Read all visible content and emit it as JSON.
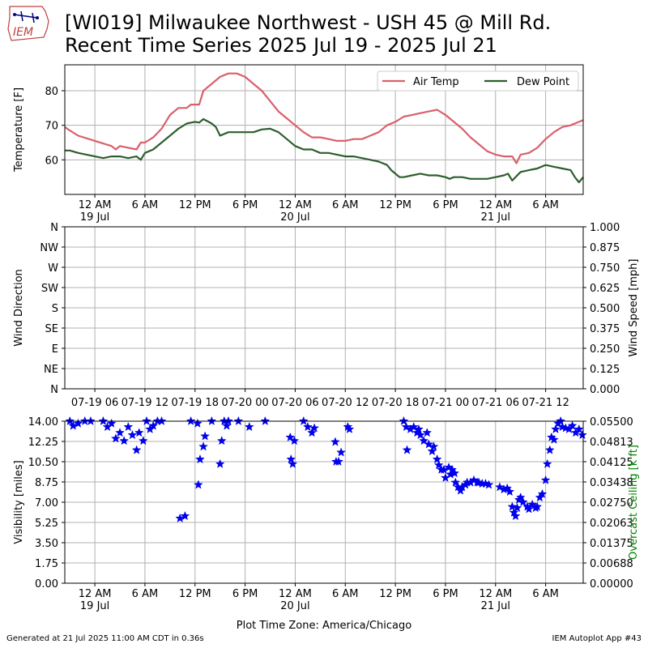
{
  "title_line1": "[WI019] Milwaukee Northwest - USH 45 @ Mill Rd.",
  "title_line2": "Recent Time Series 2025 Jul 19 - 2025 Jul 21",
  "footer_left": "Generated at 21 Jul 2025 11:00 AM CDT in 0.36s",
  "footer_right": "IEM Autoplot App #43",
  "logo_text": "IEM",
  "colors": {
    "air_temp": "#d9606a",
    "dew_point": "#2d5e2d",
    "visibility": "#0000ee",
    "ceiling_label": "#008000",
    "grid": "#b0b0b0"
  },
  "time_axis_labels": [
    {
      "hour": 24,
      "label": "12 AM",
      "sub": "19 Jul"
    },
    {
      "hour": 30,
      "label": "6 AM",
      "sub": ""
    },
    {
      "hour": 36,
      "label": "12 PM",
      "sub": ""
    },
    {
      "hour": 42,
      "label": "6 PM",
      "sub": ""
    },
    {
      "hour": 48,
      "label": "12 AM",
      "sub": "20 Jul"
    },
    {
      "hour": 54,
      "label": "6 AM",
      "sub": ""
    },
    {
      "hour": 60,
      "label": "12 PM",
      "sub": ""
    },
    {
      "hour": 66,
      "label": "6 PM",
      "sub": ""
    },
    {
      "hour": 72,
      "label": "12 AM",
      "sub": "21 Jul"
    },
    {
      "hour": 78,
      "label": "6 AM",
      "sub": ""
    }
  ],
  "wind_axis_labels": [
    {
      "hour": 24,
      "label": "07-19 06"
    },
    {
      "hour": 30,
      "label": "07-19 12"
    },
    {
      "hour": 36,
      "label": "07-19 18"
    },
    {
      "hour": 42,
      "label": "07-20 00"
    },
    {
      "hour": 48,
      "label": "07-20 06"
    },
    {
      "hour": 54,
      "label": "07-20 12"
    },
    {
      "hour": 60,
      "label": "07-20 18"
    },
    {
      "hour": 66,
      "label": "07-21 00"
    },
    {
      "hour": 72,
      "label": "07-21 06"
    },
    {
      "hour": 78,
      "label": "07-21 12"
    }
  ],
  "chart_data": [
    {
      "type": "line",
      "time_axis": "hours since 2025-07-18 00:00 CDT",
      "xlim": [
        20.4,
        82.5
      ],
      "ylabel": "Temperature [F]",
      "yticks": [
        60,
        70,
        80
      ],
      "ylim": [
        50,
        87.5
      ],
      "grid": true,
      "legend": "top-right",
      "series": [
        {
          "name": "Air Temp",
          "points": [
            [
              20.4,
              69.5
            ],
            [
              21,
              68.5
            ],
            [
              22,
              67
            ],
            [
              24,
              65.5
            ],
            [
              26,
              64
            ],
            [
              26.5,
              63
            ],
            [
              27,
              64
            ],
            [
              28,
              63.5
            ],
            [
              29,
              63
            ],
            [
              29.5,
              65
            ],
            [
              30,
              65
            ],
            [
              31,
              66.5
            ],
            [
              32,
              69
            ],
            [
              33,
              73
            ],
            [
              34,
              75
            ],
            [
              35,
              75
            ],
            [
              35.5,
              76
            ],
            [
              36.5,
              76
            ],
            [
              37,
              80
            ],
            [
              38,
              82
            ],
            [
              39,
              84
            ],
            [
              40,
              85
            ],
            [
              41,
              85
            ],
            [
              42,
              84
            ],
            [
              43,
              82
            ],
            [
              44,
              80
            ],
            [
              45,
              77
            ],
            [
              46,
              74
            ],
            [
              47,
              72
            ],
            [
              48,
              70
            ],
            [
              49,
              68
            ],
            [
              50,
              66.5
            ],
            [
              51,
              66.5
            ],
            [
              52,
              66
            ],
            [
              53,
              65.5
            ],
            [
              54,
              65.5
            ],
            [
              55,
              66
            ],
            [
              56,
              66
            ],
            [
              57,
              67
            ],
            [
              58,
              68
            ],
            [
              59,
              70
            ],
            [
              60,
              71
            ],
            [
              61,
              72.5
            ],
            [
              62,
              73
            ],
            [
              63,
              73.5
            ],
            [
              64,
              74
            ],
            [
              65,
              74.5
            ],
            [
              66,
              73
            ],
            [
              67,
              71
            ],
            [
              68,
              69
            ],
            [
              69,
              66.5
            ],
            [
              70,
              64.5
            ],
            [
              71,
              62.5
            ],
            [
              72,
              61.5
            ],
            [
              73,
              61
            ],
            [
              74,
              61
            ],
            [
              74.5,
              59
            ],
            [
              75,
              61.5
            ],
            [
              76,
              62
            ],
            [
              77,
              63.5
            ],
            [
              78,
              66
            ],
            [
              79,
              68
            ],
            [
              80,
              69.5
            ],
            [
              81,
              70
            ],
            [
              82,
              71
            ],
            [
              82.5,
              71.5
            ]
          ]
        },
        {
          "name": "Dew Point",
          "points": [
            [
              20.4,
              62.7
            ],
            [
              21,
              62.7
            ],
            [
              22,
              62
            ],
            [
              24,
              61
            ],
            [
              25,
              60.5
            ],
            [
              26,
              61
            ],
            [
              27,
              61
            ],
            [
              28,
              60.5
            ],
            [
              29,
              61
            ],
            [
              29.5,
              60
            ],
            [
              30,
              62
            ],
            [
              31,
              63
            ],
            [
              32,
              65
            ],
            [
              33,
              67
            ],
            [
              34,
              69
            ],
            [
              35,
              70.5
            ],
            [
              36,
              71
            ],
            [
              36.5,
              70.8
            ],
            [
              37,
              71.8
            ],
            [
              38,
              70.5
            ],
            [
              38.5,
              69.5
            ],
            [
              39,
              67
            ],
            [
              40,
              68
            ],
            [
              41,
              68
            ],
            [
              42,
              68
            ],
            [
              43,
              68
            ],
            [
              44,
              68.8
            ],
            [
              45,
              69
            ],
            [
              46,
              68
            ],
            [
              47,
              66
            ],
            [
              48,
              64
            ],
            [
              49,
              63
            ],
            [
              50,
              63
            ],
            [
              51,
              62
            ],
            [
              52,
              62
            ],
            [
              53,
              61.5
            ],
            [
              54,
              61
            ],
            [
              55,
              61
            ],
            [
              56,
              60.5
            ],
            [
              57,
              60
            ],
            [
              58,
              59.5
            ],
            [
              59,
              58.5
            ],
            [
              59.5,
              57
            ],
            [
              60,
              56
            ],
            [
              60.5,
              55
            ],
            [
              61,
              55
            ],
            [
              62,
              55.5
            ],
            [
              63,
              56
            ],
            [
              64,
              55.5
            ],
            [
              65,
              55.5
            ],
            [
              66,
              55
            ],
            [
              66.5,
              54.5
            ],
            [
              67,
              55
            ],
            [
              68,
              55
            ],
            [
              69,
              54.5
            ],
            [
              70,
              54.5
            ],
            [
              71,
              54.5
            ],
            [
              72,
              55
            ],
            [
              73,
              55.5
            ],
            [
              73.5,
              56
            ],
            [
              74,
              54
            ],
            [
              75,
              56.5
            ],
            [
              76,
              57
            ],
            [
              77,
              57.5
            ],
            [
              78,
              58.5
            ],
            [
              79,
              58
            ],
            [
              80,
              57.5
            ],
            [
              81,
              57
            ],
            [
              81.5,
              55
            ],
            [
              82,
              53.5
            ],
            [
              82.5,
              55
            ]
          ]
        }
      ]
    },
    {
      "type": "scatter",
      "time_axis": "hours since 2025-07-18 00:00 CDT",
      "xlim": [
        20.4,
        82.5
      ],
      "ylabel": "Wind Direction",
      "ytick_labels": [
        "N",
        "NE",
        "E",
        "SE",
        "S",
        "SW",
        "W",
        "NW",
        "N"
      ],
      "ylim": [
        0,
        360
      ],
      "y2label": "Wind Speed [mph]",
      "y2ticks": [
        "0.000",
        "0.125",
        "0.250",
        "0.375",
        "0.500",
        "0.625",
        "0.750",
        "0.875",
        "1.000"
      ],
      "y2lim": [
        0,
        1
      ],
      "grid": true,
      "points": []
    },
    {
      "type": "scatter",
      "time_axis": "hours since 2025-07-18 00:00 CDT",
      "xlim": [
        20.4,
        82.5
      ],
      "xlabel": "Plot Time Zone: America/Chicago",
      "ylabel": "Visibility [miles]",
      "yticks": [
        "0.00",
        "1.75",
        "3.50",
        "5.25",
        "7.00",
        "8.75",
        "10.50",
        "12.25",
        "14.00"
      ],
      "ylim": [
        0,
        14
      ],
      "y2label": "Overcast Ceiling [k ft]",
      "y2ticks": [
        "0.00000",
        "0.00688",
        "0.01375",
        "0.02063",
        "0.02750",
        "0.03438",
        "0.04125",
        "0.04813",
        "0.05500"
      ],
      "y2lim": [
        0,
        0.055
      ],
      "grid": true,
      "marker": "star",
      "points": [
        [
          21,
          14
        ],
        [
          21.4,
          13.6
        ],
        [
          22,
          13.8
        ],
        [
          22.8,
          14
        ],
        [
          23.5,
          14
        ],
        [
          25,
          14
        ],
        [
          25.5,
          13.5
        ],
        [
          26,
          13.8
        ],
        [
          26.5,
          12.5
        ],
        [
          27,
          13
        ],
        [
          27.5,
          12.3
        ],
        [
          28,
          13.5
        ],
        [
          28.5,
          12.8
        ],
        [
          29,
          11.5
        ],
        [
          29.3,
          13
        ],
        [
          29.8,
          12.3
        ],
        [
          30.2,
          14
        ],
        [
          30.6,
          13.3
        ],
        [
          31,
          13.6
        ],
        [
          31.5,
          14
        ],
        [
          32,
          14
        ],
        [
          34.2,
          5.6
        ],
        [
          34.8,
          5.8
        ],
        [
          35.5,
          14
        ],
        [
          36.3,
          13.8
        ],
        [
          36.4,
          8.5
        ],
        [
          36.6,
          10.7
        ],
        [
          37,
          11.8
        ],
        [
          37.2,
          12.7
        ],
        [
          38,
          14
        ],
        [
          39.5,
          14
        ],
        [
          39,
          10.3
        ],
        [
          39.2,
          12.3
        ],
        [
          39.8,
          13.6
        ],
        [
          40,
          14
        ],
        [
          41.2,
          14
        ],
        [
          42.5,
          13.5
        ],
        [
          44.4,
          14
        ],
        [
          47.4,
          12.6
        ],
        [
          47.5,
          10.7
        ],
        [
          47.7,
          10.3
        ],
        [
          47.9,
          12.3
        ],
        [
          49,
          14
        ],
        [
          49.5,
          13.5
        ],
        [
          50,
          13
        ],
        [
          50.3,
          13.4
        ],
        [
          52.8,
          12.2
        ],
        [
          52.9,
          10.5
        ],
        [
          53.2,
          10.5
        ],
        [
          53.5,
          11.3
        ],
        [
          54.3,
          13.5
        ],
        [
          54.5,
          13.3
        ],
        [
          61,
          14
        ],
        [
          61.3,
          13.5
        ],
        [
          61.4,
          11.5
        ],
        [
          61.8,
          13.3
        ],
        [
          62.2,
          13.5
        ],
        [
          62.6,
          13
        ],
        [
          62.8,
          13.3
        ],
        [
          63,
          12.8
        ],
        [
          63.4,
          12.3
        ],
        [
          63.8,
          13
        ],
        [
          64,
          12
        ],
        [
          64.4,
          11.4
        ],
        [
          64.6,
          11.8
        ],
        [
          65,
          10.7
        ],
        [
          65.2,
          10.2
        ],
        [
          65.5,
          9.8
        ],
        [
          65.8,
          9.8
        ],
        [
          66,
          9.1
        ],
        [
          66.4,
          10
        ],
        [
          66.6,
          9.4
        ],
        [
          66.8,
          9.8
        ],
        [
          67.1,
          9.5
        ],
        [
          67.2,
          8.7
        ],
        [
          67.5,
          8.3
        ],
        [
          67.8,
          8
        ],
        [
          68,
          8.3
        ],
        [
          68.4,
          8.5
        ],
        [
          68.6,
          8.7
        ],
        [
          69,
          8.7
        ],
        [
          69.4,
          8.9
        ],
        [
          69.8,
          8.7
        ],
        [
          70,
          8.7
        ],
        [
          70.4,
          8.6
        ],
        [
          70.8,
          8.6
        ],
        [
          71.2,
          8.5
        ],
        [
          72.5,
          8.3
        ],
        [
          73,
          8.1
        ],
        [
          73.4,
          8.2
        ],
        [
          73.7,
          7.9
        ],
        [
          74,
          6.6
        ],
        [
          74.2,
          6.1
        ],
        [
          74.4,
          5.8
        ],
        [
          74.6,
          6.5
        ],
        [
          74.8,
          7.2
        ],
        [
          75,
          7.4
        ],
        [
          75.3,
          7
        ],
        [
          75.8,
          6.6
        ],
        [
          76,
          6.4
        ],
        [
          76.4,
          6.8
        ],
        [
          76.8,
          6.5
        ],
        [
          77,
          6.6
        ],
        [
          77.3,
          7.4
        ],
        [
          77.6,
          7.7
        ],
        [
          78,
          8.9
        ],
        [
          78.2,
          10.3
        ],
        [
          78.5,
          11.5
        ],
        [
          78.7,
          12.6
        ],
        [
          79,
          12.4
        ],
        [
          79.2,
          13.3
        ],
        [
          79.5,
          13.8
        ],
        [
          79.8,
          14
        ],
        [
          80,
          13.5
        ],
        [
          80.4,
          13.4
        ],
        [
          80.8,
          13.3
        ],
        [
          81.2,
          13.6
        ],
        [
          81.6,
          13
        ],
        [
          82,
          13.3
        ],
        [
          82.4,
          12.8
        ]
      ]
    }
  ]
}
